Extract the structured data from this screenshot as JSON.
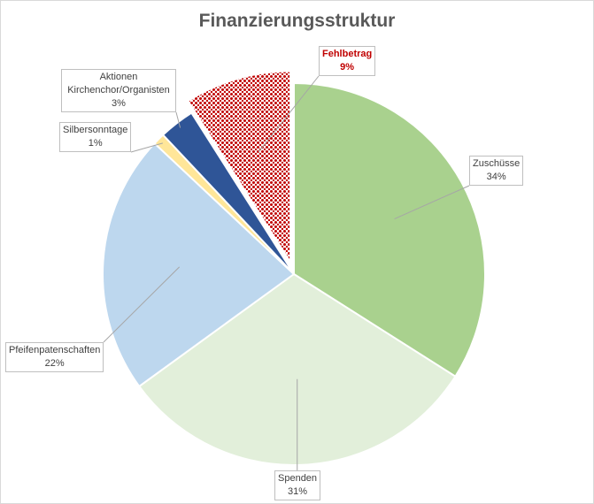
{
  "chart_data": {
    "type": "pie",
    "title": "Finanzierungsstruktur",
    "slices": [
      {
        "label": "Zuschüsse",
        "percent_label": "34%",
        "value": 34,
        "color": "#a9d18e",
        "exploded": false
      },
      {
        "label": "Spenden",
        "percent_label": "31%",
        "value": 31,
        "color": "#e2efda",
        "exploded": false
      },
      {
        "label": "Pfeifenpatenschaften",
        "percent_label": "22%",
        "value": 22,
        "color": "#bdd7ee",
        "exploded": false
      },
      {
        "label": "Silbersonntage",
        "percent_label": "1%",
        "value": 1,
        "color": "#ffe699",
        "exploded": false
      },
      {
        "label": "Aktionen Kirchenchor/Organisten",
        "percent_label": "3%",
        "value": 3,
        "color": "#2f5597",
        "exploded": false
      },
      {
        "label": "Fehlbetrag",
        "percent_label": "9%",
        "value": 9,
        "color": "#c00000",
        "pattern": "dotted",
        "exploded": true,
        "highlight": true
      }
    ],
    "start_angle": "12 o'clock",
    "direction": "clockwise",
    "legend": "none",
    "data_labels": "callouts with leader lines"
  }
}
